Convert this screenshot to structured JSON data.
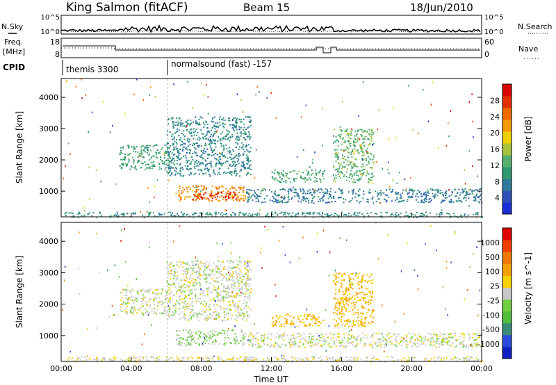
{
  "header": {
    "station": "King Salmon (fitACF)",
    "beam": "Beam 15",
    "date": "18/Jun/2010"
  },
  "summary_panel": {
    "nsky_label": "N.Sky",
    "nsearch_label": "N.Search",
    "freq_label_1": "Freq.",
    "freq_label_2": "[MHz]",
    "nave_label": "Nave",
    "cpid_label": "CPID",
    "noise_ticks_left": [
      "10^5",
      "10^0"
    ],
    "noise_ticks_right": [
      "10^5",
      "10^0"
    ],
    "freq_ticks": [
      "18",
      "8"
    ],
    "nave_ticks": [
      "60",
      "0"
    ],
    "cpid_segments": [
      {
        "name": "themis 3300",
        "start_hour": 0,
        "end_hour": 6.0
      },
      {
        "name": "normalsound (fast) -157",
        "start_hour": 6.0,
        "end_hour": 24
      }
    ]
  },
  "colors": {
    "power_scale": [
      "#1a2fd6",
      "#3050b8",
      "#2f7a9a",
      "#2f9a6e",
      "#58b070",
      "#a8c23a",
      "#f0d000",
      "#f59a00",
      "#f06a00",
      "#e03000",
      "#d80000"
    ],
    "velocity_scale": [
      "#1020c0",
      "#2a4cd8",
      "#3a8c78",
      "#4fbf3c",
      "#70d040",
      "#c8c8c8",
      "#f7d000",
      "#f5a000",
      "#f07800",
      "#f04000",
      "#e00000"
    ]
  },
  "chart_data": [
    {
      "type": "heatmap",
      "name": "power",
      "ylabel": "Slant Range [km]",
      "xlabel": "",
      "colorbar_label": "Power [dB]",
      "colorbar_ticks": [
        "4",
        "8",
        "12",
        "16",
        "20",
        "24",
        "28"
      ],
      "x_ticks": [
        "00:00",
        "04:00",
        "08:00",
        "12:00",
        "16:00",
        "20:00",
        "00:00"
      ],
      "y_ticks": [
        "1000",
        "2000",
        "3000",
        "4000"
      ],
      "xlim_hours": [
        0,
        24
      ],
      "ylim_km": [
        180,
        4600
      ],
      "clim": [
        0,
        30
      ],
      "regions": [
        {
          "label": "morning upper echo band",
          "x_hours": [
            3.3,
            6.2
          ],
          "y_km": [
            1700,
            2500
          ],
          "level": 10
        },
        {
          "label": "sloped upper band",
          "x_hours": [
            6.0,
            10.8
          ],
          "y_km": [
            1500,
            3400
          ],
          "level": 7
        },
        {
          "label": "strong near-range echo",
          "x_hours": [
            6.5,
            10.5
          ],
          "y_km": [
            700,
            1200
          ],
          "level": 22
        },
        {
          "label": "core strong echo",
          "x_hours": [
            7.5,
            10.0
          ],
          "y_km": [
            750,
            1000
          ],
          "level": 28
        },
        {
          "label": "midday band",
          "x_hours": [
            12.0,
            15.0
          ],
          "y_km": [
            1300,
            1700
          ],
          "level": 11
        },
        {
          "label": "afternoon rising echo",
          "x_hours": [
            15.5,
            17.8
          ],
          "y_km": [
            1300,
            3000
          ],
          "level": 12
        },
        {
          "label": "ground scatter band",
          "x_hours": [
            10.5,
            24
          ],
          "y_km": [
            650,
            1100
          ],
          "level": 6
        },
        {
          "label": "near-range clutter",
          "x_hours": [
            0,
            24
          ],
          "y_km": [
            180,
            350
          ],
          "level": 8
        }
      ]
    },
    {
      "type": "heatmap",
      "name": "velocity",
      "ylabel": "Slant Range [km]",
      "xlabel": "Time UT",
      "colorbar_label": "Velocity [m s^-1]",
      "colorbar_ticks": [
        "-1000",
        "-500",
        "-100",
        "-25",
        "25",
        "100",
        "500",
        "1000"
      ],
      "x_ticks": [
        "00:00",
        "04:00",
        "08:00",
        "12:00",
        "16:00",
        "20:00",
        "00:00"
      ],
      "y_ticks": [
        "1000",
        "2000",
        "3000",
        "4000"
      ],
      "xlim_hours": [
        0,
        24
      ],
      "ylim_km": [
        180,
        4600
      ],
      "clim": [
        -1000,
        1000
      ],
      "regions": [
        {
          "label": "morning upper echo band",
          "x_hours": [
            3.3,
            6.2
          ],
          "y_km": [
            1700,
            2500
          ],
          "velocity": 0
        },
        {
          "label": "sloped upper band",
          "x_hours": [
            6.0,
            10.8
          ],
          "y_km": [
            1500,
            3400
          ],
          "velocity": 0
        },
        {
          "label": "strong near-range echo",
          "x_hours": [
            6.5,
            10.5
          ],
          "y_km": [
            700,
            1200
          ],
          "velocity": -150
        },
        {
          "label": "midday band",
          "x_hours": [
            12.0,
            15.0
          ],
          "y_km": [
            1300,
            1700
          ],
          "velocity": 300
        },
        {
          "label": "afternoon rising echo",
          "x_hours": [
            15.5,
            17.8
          ],
          "y_km": [
            1300,
            3000
          ],
          "velocity": 300
        },
        {
          "label": "ground scatter band",
          "x_hours": [
            10.5,
            24
          ],
          "y_km": [
            650,
            1100
          ],
          "velocity": 0
        },
        {
          "label": "near-range clutter",
          "x_hours": [
            0,
            24
          ],
          "y_km": [
            180,
            350
          ],
          "velocity": 60
        }
      ]
    }
  ]
}
